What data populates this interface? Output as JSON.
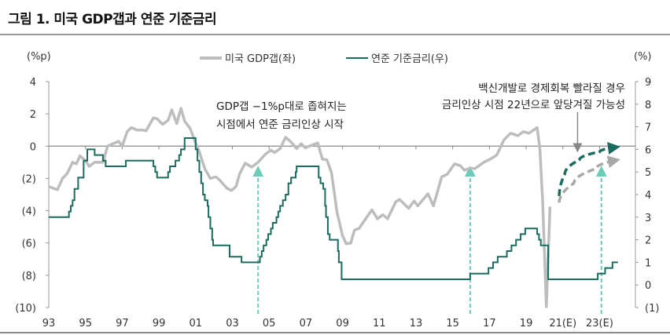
{
  "title": "그림 1. 미국 GDP갭과 연준 기준금리",
  "chart_data": {
    "type": "line",
    "title": "그림 1. 미국 GDP갭과 연준 기준금리",
    "left_unit": "(%p)",
    "right_unit": "(%)",
    "left_ylim": [
      -10,
      4
    ],
    "right_ylim": [
      -1,
      9
    ],
    "left_ticks": [
      "4",
      "2",
      "0",
      "(2)",
      "(4)",
      "(6)",
      "(8)",
      "(10)"
    ],
    "right_ticks": [
      "9",
      "8",
      "7",
      "6",
      "5",
      "4",
      "3",
      "2",
      "1",
      "0",
      "(1)"
    ],
    "x_ticks": [
      "93",
      "95",
      "97",
      "99",
      "01",
      "03",
      "05",
      "07",
      "09",
      "11",
      "13",
      "15",
      "17",
      "19",
      "21(E)",
      "23(E)"
    ],
    "xlim": [
      1993,
      2024
    ],
    "legend_position": "top-center",
    "colors": {
      "gdp_gap": "#bdbdbd",
      "fed_rate": "#1b6b5f",
      "annotation_arrow": "#6ccbb9",
      "forecast_teal": "#1b6b5f",
      "forecast_gray": "#a8a8a8",
      "note_arrow": "#888888"
    },
    "series": [
      {
        "name": "미국 GDP갭(좌)",
        "axis": "left",
        "points": [
          [
            1993.0,
            -2.5
          ],
          [
            1993.47,
            -2.7
          ],
          [
            1993.75,
            -2.0
          ],
          [
            1994.0,
            -1.7
          ],
          [
            1994.3,
            -1.0
          ],
          [
            1994.5,
            -1.1
          ],
          [
            1994.7,
            -0.6
          ],
          [
            1995.0,
            -0.9
          ],
          [
            1995.2,
            -1.25
          ],
          [
            1995.5,
            -1.0
          ],
          [
            1995.96,
            -1.0
          ],
          [
            1996.2,
            0.0
          ],
          [
            1996.8,
            0.3
          ],
          [
            1997.0,
            0.0
          ],
          [
            1997.27,
            0.9
          ],
          [
            1997.5,
            1.15
          ],
          [
            1997.8,
            1.0
          ],
          [
            1998.1,
            1.0
          ],
          [
            1998.3,
            0.95
          ],
          [
            1998.7,
            1.75
          ],
          [
            1998.9,
            1.7
          ],
          [
            1999.2,
            1.35
          ],
          [
            1999.5,
            1.6
          ],
          [
            1999.7,
            2.25
          ],
          [
            1999.97,
            1.4
          ],
          [
            2000.2,
            2.35
          ],
          [
            2000.4,
            1.55
          ],
          [
            2000.7,
            1.1
          ],
          [
            2000.96,
            0.3
          ],
          [
            2001.2,
            -0.35
          ],
          [
            2001.5,
            -1.4
          ],
          [
            2001.8,
            -2.0
          ],
          [
            2002.1,
            -1.9
          ],
          [
            2002.3,
            -2.1
          ],
          [
            2002.7,
            -2.6
          ],
          [
            2002.95,
            -2.75
          ],
          [
            2003.2,
            -2.5
          ],
          [
            2003.4,
            -1.7
          ],
          [
            2003.7,
            -1.05
          ],
          [
            2004.05,
            -1.3
          ],
          [
            2004.4,
            -1.0
          ],
          [
            2004.8,
            -0.5
          ],
          [
            2005.1,
            -0.25
          ],
          [
            2005.3,
            -0.4
          ],
          [
            2005.6,
            -0.15
          ],
          [
            2005.9,
            0.55
          ],
          [
            2006.2,
            0.25
          ],
          [
            2006.5,
            -0.15
          ],
          [
            2006.75,
            0.15
          ],
          [
            2006.96,
            -0.1
          ],
          [
            2007.65,
            0.2
          ],
          [
            2007.9,
            -0.8
          ],
          [
            2008.15,
            -0.85
          ],
          [
            2008.4,
            -1.65
          ],
          [
            2008.7,
            -4.1
          ],
          [
            2009.0,
            -5.55
          ],
          [
            2009.2,
            -6.05
          ],
          [
            2009.45,
            -6.0
          ],
          [
            2009.65,
            -5.2
          ],
          [
            2009.9,
            -5.1
          ],
          [
            2010.35,
            -4.35
          ],
          [
            2010.6,
            -3.95
          ],
          [
            2010.9,
            -4.5
          ],
          [
            2011.2,
            -4.25
          ],
          [
            2011.45,
            -4.5
          ],
          [
            2011.9,
            -3.45
          ],
          [
            2012.1,
            -3.3
          ],
          [
            2012.6,
            -3.85
          ],
          [
            2012.9,
            -3.4
          ],
          [
            2013.1,
            -3.7
          ],
          [
            2013.65,
            -2.95
          ],
          [
            2013.95,
            -3.7
          ],
          [
            2014.4,
            -1.9
          ],
          [
            2014.7,
            -1.75
          ],
          [
            2015.1,
            -1.1
          ],
          [
            2015.4,
            -1.2
          ],
          [
            2015.65,
            -1.5
          ],
          [
            2015.95,
            -1.35
          ],
          [
            2016.2,
            -1.4
          ],
          [
            2016.7,
            -1.0
          ],
          [
            2017.05,
            -0.8
          ],
          [
            2017.4,
            -0.55
          ],
          [
            2017.8,
            0.4
          ],
          [
            2018.15,
            0.8
          ],
          [
            2018.55,
            0.65
          ],
          [
            2018.85,
            0.9
          ],
          [
            2019.15,
            0.8
          ],
          [
            2019.6,
            1.15
          ],
          [
            2019.75,
            -0.2
          ],
          [
            2019.9,
            -3.45
          ],
          [
            2020.1,
            -9.95
          ],
          [
            2020.3,
            -3.75
          ]
        ]
      },
      {
        "name": "연준 기준금리(우)",
        "axis": "right",
        "step": true,
        "points": [
          [
            1993.0,
            3.0
          ],
          [
            1994.1,
            3.25
          ],
          [
            1994.2,
            3.5
          ],
          [
            1994.3,
            3.75
          ],
          [
            1994.4,
            4.25
          ],
          [
            1994.6,
            4.75
          ],
          [
            1994.9,
            5.5
          ],
          [
            1995.1,
            6.0
          ],
          [
            1995.5,
            5.75
          ],
          [
            1995.95,
            5.5
          ],
          [
            1996.1,
            5.25
          ],
          [
            1997.2,
            5.5
          ],
          [
            1998.7,
            5.25
          ],
          [
            1998.8,
            5.0
          ],
          [
            1998.9,
            4.75
          ],
          [
            1999.5,
            5.0
          ],
          [
            1999.6,
            5.25
          ],
          [
            1999.9,
            5.5
          ],
          [
            2000.1,
            5.75
          ],
          [
            2000.2,
            6.0
          ],
          [
            2000.4,
            6.5
          ],
          [
            2001.0,
            6.0
          ],
          [
            2001.1,
            5.5
          ],
          [
            2001.2,
            5.0
          ],
          [
            2001.3,
            4.5
          ],
          [
            2001.4,
            4.0
          ],
          [
            2001.5,
            3.75
          ],
          [
            2001.65,
            3.5
          ],
          [
            2001.7,
            3.0
          ],
          [
            2001.8,
            2.5
          ],
          [
            2001.9,
            2.0
          ],
          [
            2001.95,
            1.75
          ],
          [
            2002.85,
            1.25
          ],
          [
            2003.5,
            1.0
          ],
          [
            2004.5,
            1.25
          ],
          [
            2004.6,
            1.5
          ],
          [
            2004.7,
            1.75
          ],
          [
            2004.85,
            2.0
          ],
          [
            2004.95,
            2.25
          ],
          [
            2005.1,
            2.5
          ],
          [
            2005.2,
            2.75
          ],
          [
            2005.4,
            3.0
          ],
          [
            2005.5,
            3.25
          ],
          [
            2005.6,
            3.5
          ],
          [
            2005.75,
            3.75
          ],
          [
            2005.9,
            4.0
          ],
          [
            2006.05,
            4.5
          ],
          [
            2006.2,
            4.75
          ],
          [
            2006.45,
            5.0
          ],
          [
            2006.5,
            5.25
          ],
          [
            2007.7,
            4.75
          ],
          [
            2007.8,
            4.5
          ],
          [
            2007.95,
            4.25
          ],
          [
            2008.05,
            3.5
          ],
          [
            2008.1,
            3.0
          ],
          [
            2008.2,
            2.25
          ],
          [
            2008.3,
            2.0
          ],
          [
            2008.75,
            1.5
          ],
          [
            2008.8,
            1.0
          ],
          [
            2008.95,
            0.25
          ],
          [
            2015.95,
            0.5
          ],
          [
            2016.95,
            0.75
          ],
          [
            2017.2,
            1.0
          ],
          [
            2017.45,
            1.25
          ],
          [
            2017.95,
            1.5
          ],
          [
            2018.2,
            1.75
          ],
          [
            2018.45,
            2.0
          ],
          [
            2018.7,
            2.25
          ],
          [
            2018.95,
            2.5
          ],
          [
            2019.6,
            2.25
          ],
          [
            2019.7,
            2.0
          ],
          [
            2019.8,
            1.75
          ],
          [
            2020.2,
            0.25
          ],
          [
            2022.9,
            0.5
          ],
          [
            2023.3,
            0.75
          ],
          [
            2023.7,
            1.0
          ],
          [
            2024.0,
            1.0
          ]
        ]
      }
    ],
    "forecast_paths": [
      {
        "color_key": "forecast_teal",
        "axis": "left",
        "points": [
          [
            2020.8,
            -3.1
          ],
          [
            2021.1,
            -1.75
          ],
          [
            2021.9,
            -0.85
          ],
          [
            2023.0,
            -0.35
          ],
          [
            2024.0,
            -0.05
          ]
        ]
      },
      {
        "color_key": "forecast_gray",
        "axis": "left",
        "points": [
          [
            2020.8,
            -3.5
          ],
          [
            2021.6,
            -2.3
          ],
          [
            2022.8,
            -1.4
          ],
          [
            2024.0,
            -0.85
          ]
        ]
      }
    ],
    "annotation_arrows_years": [
      2004.4,
      2015.95,
      2023.1
    ],
    "note_arrow_year": 2021.8,
    "annotations": [
      {
        "lines": [
          "GDP갭 −1%p대로 좁혀지는",
          "시점에서 연준 금리인상 시작"
        ]
      },
      {
        "lines": [
          "백신개발로 경제회복 빨라질 경우",
          "금리인상 시점 22년으로 앞당겨질 가능성"
        ]
      }
    ]
  }
}
